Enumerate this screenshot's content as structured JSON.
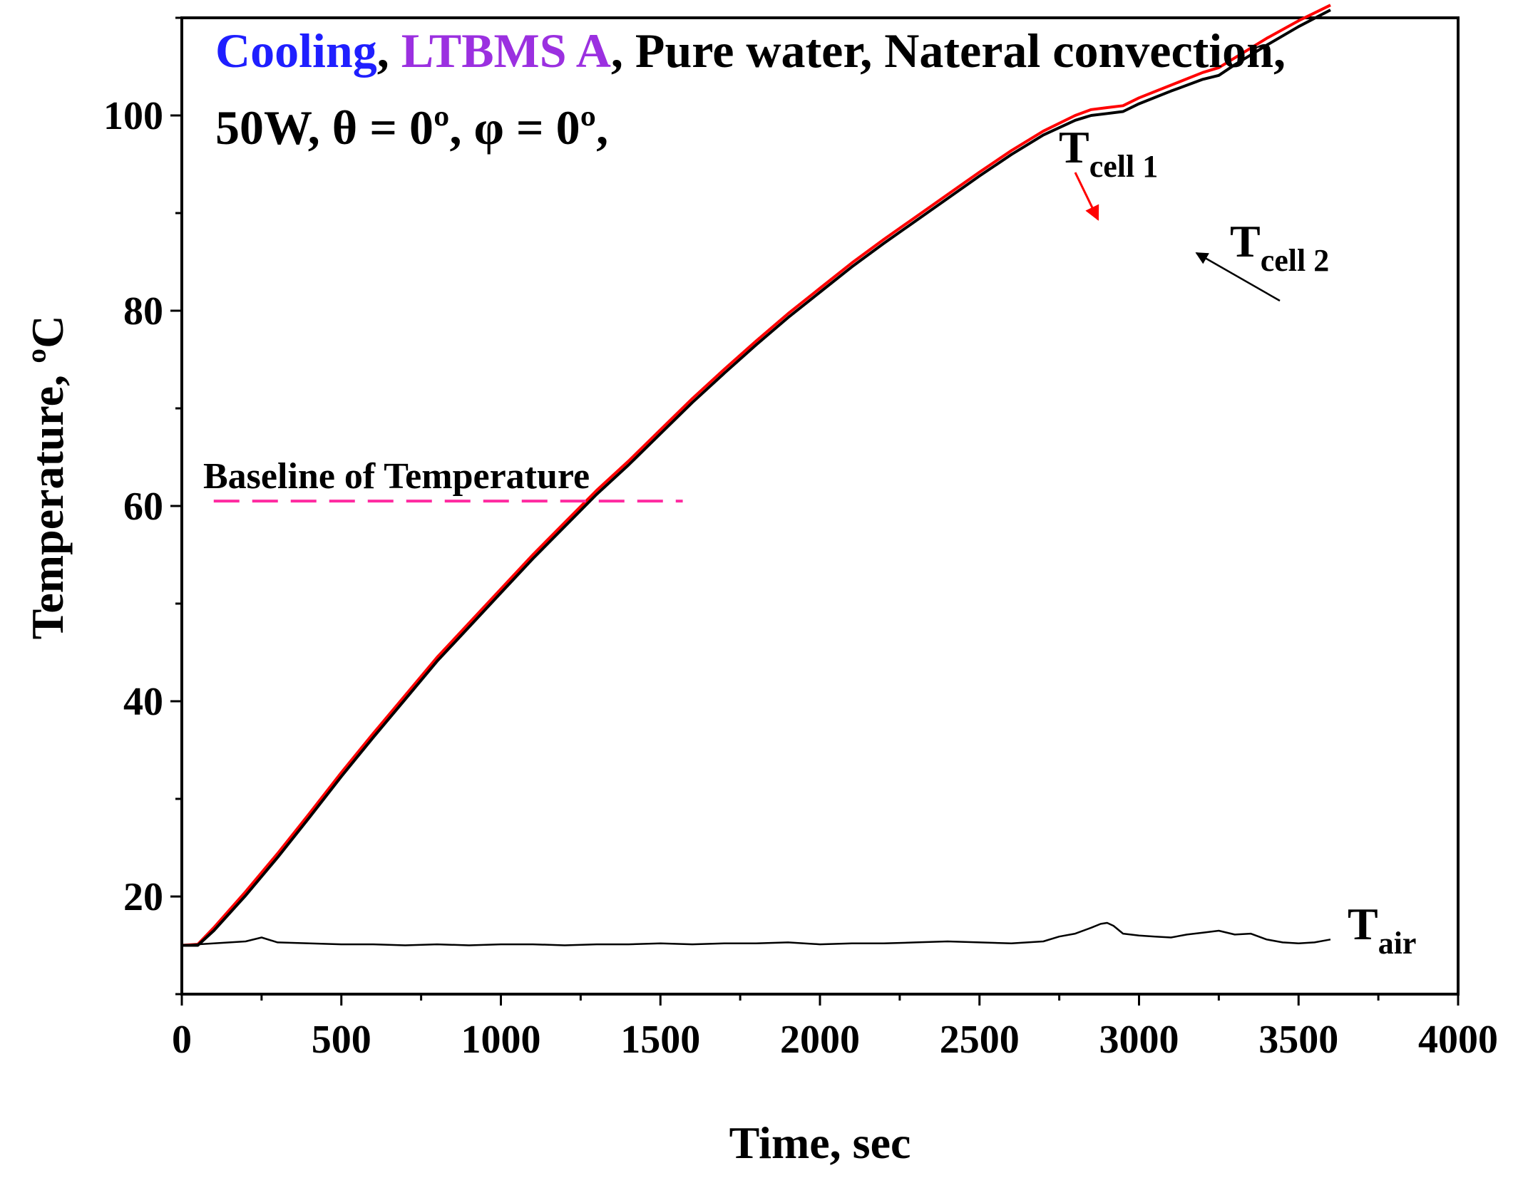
{
  "chart_data": {
    "type": "line",
    "title_line1": [
      {
        "text": "Cooling",
        "color": "#1f1fff"
      },
      {
        "text": ", ",
        "color": "#000000"
      },
      {
        "text": "LTBMS A",
        "color": "#9b30e0"
      },
      {
        "text": ", Pure water, Nateral convection,",
        "color": "#000000"
      }
    ],
    "title_line2": "50W, θ = 0º, φ = 0º,",
    "xlabel": "Time, sec",
    "ylabel": "Temperature, ºC",
    "xlim": [
      0,
      4000
    ],
    "ylim": [
      10,
      110
    ],
    "xticks": [
      0,
      500,
      1000,
      1500,
      2000,
      2500,
      3000,
      3500,
      4000
    ],
    "yticks": [
      20,
      40,
      60,
      80,
      100
    ],
    "series": [
      {
        "name": "T_cell 1",
        "color": "#ff0000",
        "x": [
          0,
          50,
          100,
          200,
          300,
          400,
          500,
          600,
          700,
          800,
          900,
          1000,
          1100,
          1200,
          1300,
          1400,
          1500,
          1600,
          1700,
          1800,
          1900,
          2000,
          2100,
          2200,
          2300,
          2400,
          2500,
          2600,
          2700,
          2800,
          2850,
          2900,
          2950,
          3000,
          3100,
          3200,
          3250,
          3300,
          3400,
          3500,
          3600
        ],
        "y": [
          15,
          15.1,
          16.8,
          20.5,
          24.4,
          28.5,
          32.7,
          36.7,
          40.6,
          44.5,
          48.0,
          51.5,
          55.0,
          58.3,
          61.6,
          64.6,
          67.8,
          71.0,
          74.0,
          76.9,
          79.7,
          82.3,
          84.9,
          87.3,
          89.6,
          91.9,
          94.2,
          96.4,
          98.4,
          100.0,
          100.6,
          100.8,
          101.0,
          101.8,
          103.1,
          104.4,
          104.9,
          105.9,
          107.9,
          109.7,
          111.3
        ]
      },
      {
        "name": "T_cell 2",
        "color": "#000000",
        "x": [
          0,
          50,
          100,
          200,
          300,
          400,
          500,
          600,
          700,
          800,
          900,
          1000,
          1100,
          1200,
          1300,
          1400,
          1500,
          1600,
          1700,
          1800,
          1900,
          2000,
          2100,
          2200,
          2300,
          2400,
          2500,
          2600,
          2700,
          2800,
          2850,
          2900,
          2950,
          3000,
          3100,
          3200,
          3250,
          3300,
          3400,
          3500,
          3600
        ],
        "y": [
          15,
          15.0,
          16.5,
          20.1,
          24.0,
          28.1,
          32.3,
          36.3,
          40.2,
          44.1,
          47.6,
          51.1,
          54.6,
          57.9,
          61.2,
          64.2,
          67.4,
          70.6,
          73.6,
          76.5,
          79.3,
          81.9,
          84.5,
          86.9,
          89.2,
          91.5,
          93.8,
          96.0,
          98.0,
          99.5,
          100.0,
          100.2,
          100.4,
          101.2,
          102.5,
          103.7,
          104.1,
          105.2,
          107.2,
          109.1,
          110.8
        ]
      },
      {
        "name": "T_air",
        "color": "#000000",
        "x": [
          0,
          100,
          200,
          250,
          300,
          400,
          500,
          600,
          700,
          800,
          900,
          1000,
          1100,
          1200,
          1300,
          1400,
          1500,
          1600,
          1700,
          1800,
          1900,
          2000,
          2100,
          2200,
          2300,
          2400,
          2500,
          2600,
          2700,
          2750,
          2800,
          2850,
          2880,
          2900,
          2920,
          2950,
          3000,
          3050,
          3100,
          3150,
          3200,
          3250,
          3300,
          3350,
          3400,
          3450,
          3500,
          3550,
          3600
        ],
        "y": [
          15,
          15.2,
          15.4,
          15.8,
          15.3,
          15.2,
          15.1,
          15.1,
          15.0,
          15.1,
          15.0,
          15.1,
          15.1,
          15.0,
          15.1,
          15.1,
          15.2,
          15.1,
          15.2,
          15.2,
          15.3,
          15.1,
          15.2,
          15.2,
          15.3,
          15.4,
          15.3,
          15.2,
          15.4,
          15.9,
          16.2,
          16.8,
          17.2,
          17.3,
          17.0,
          16.2,
          16.0,
          15.9,
          15.8,
          16.1,
          16.3,
          16.5,
          16.1,
          16.2,
          15.6,
          15.3,
          15.2,
          15.3,
          15.6
        ]
      }
    ],
    "baseline": {
      "label": "Baseline of Temperature",
      "y": 60.5,
      "x_start": 100,
      "x_end": 1570,
      "color": "#ff2aa0"
    },
    "annotations": {
      "cell1": {
        "main": "T",
        "sub": "cell 1",
        "arrow_color": "#ff0000"
      },
      "cell2": {
        "main": "T",
        "sub": "cell 2",
        "arrow_color": "#000000"
      },
      "air": {
        "main": "T",
        "sub": "air"
      }
    }
  }
}
